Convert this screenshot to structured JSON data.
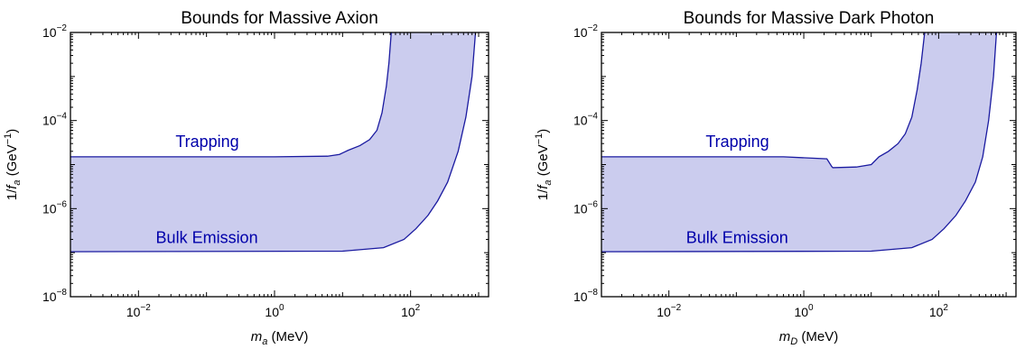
{
  "chart_data": [
    {
      "type": "area",
      "title": "Bounds for Massive Axion",
      "xlabel": {
        "var": "m",
        "sub": "a",
        "unit": " (MeV)"
      },
      "ylabel": {
        "pre": "1/",
        "var": "f",
        "sub": "a",
        "unit": " (GeV",
        "sup": "−1",
        "close": ")"
      },
      "x_scale": "log",
      "y_scale": "log",
      "xlim": [
        0.001,
        1400
      ],
      "ylim": [
        1e-08,
        0.01
      ],
      "x_ticks": [
        {
          "value": 0.01,
          "base": "10",
          "exp": "−2"
        },
        {
          "value": 1,
          "base": "10",
          "exp": "0"
        },
        {
          "value": 100,
          "base": "10",
          "exp": "2"
        }
      ],
      "y_ticks": [
        {
          "value": 1e-08,
          "base": "10",
          "exp": "−8"
        },
        {
          "value": 1e-06,
          "base": "10",
          "exp": "−6"
        },
        {
          "value": 0.0001,
          "base": "10",
          "exp": "−4"
        },
        {
          "value": 0.01,
          "base": "10",
          "exp": "−2"
        }
      ],
      "fill_color": "#CBCCEE",
      "line_color": "#1A1AA0",
      "upper_boundary": {
        "label": "Trapping",
        "points": [
          [
            0.001,
            1.5e-05
          ],
          [
            1,
            1.5e-05
          ],
          [
            6,
            1.55e-05
          ],
          [
            9,
            1.7e-05
          ],
          [
            12,
            2.1e-05
          ],
          [
            18,
            2.7e-05
          ],
          [
            25,
            3.7e-05
          ],
          [
            32,
            6e-05
          ],
          [
            38,
            0.00015
          ],
          [
            44,
            0.0006
          ],
          [
            48,
            0.002
          ],
          [
            52,
            0.01
          ]
        ]
      },
      "lower_boundary": {
        "label": "Bulk Emission",
        "points": [
          [
            0.001,
            1.05e-07
          ],
          [
            10,
            1.08e-07
          ],
          [
            40,
            1.3e-07
          ],
          [
            80,
            2e-07
          ],
          [
            120,
            3.5e-07
          ],
          [
            180,
            7e-07
          ],
          [
            250,
            1.5e-06
          ],
          [
            350,
            4e-06
          ],
          [
            500,
            2e-05
          ],
          [
            650,
            0.00012
          ],
          [
            800,
            0.001
          ],
          [
            900,
            0.01
          ]
        ]
      },
      "annotations": [
        {
          "text": "Trapping",
          "x": 0.035,
          "y": 2.5e-05
        },
        {
          "text": "Bulk Emission",
          "x": 0.018,
          "y": 1.65e-07
        }
      ]
    },
    {
      "type": "area",
      "title": "Bounds for Massive Dark Photon",
      "xlabel": {
        "var": "m",
        "sub": "D",
        "unit": " (MeV)"
      },
      "ylabel": {
        "pre": "1/",
        "var": "f",
        "sub": "a",
        "unit": " (GeV",
        "sup": "−1",
        "close": ")"
      },
      "x_scale": "log",
      "y_scale": "log",
      "xlim": [
        0.001,
        1400
      ],
      "ylim": [
        1e-08,
        0.01
      ],
      "x_ticks": [
        {
          "value": 0.01,
          "base": "10",
          "exp": "−2"
        },
        {
          "value": 1,
          "base": "10",
          "exp": "0"
        },
        {
          "value": 100,
          "base": "10",
          "exp": "2"
        }
      ],
      "y_ticks": [
        {
          "value": 1e-08,
          "base": "10",
          "exp": "−8"
        },
        {
          "value": 1e-06,
          "base": "10",
          "exp": "−6"
        },
        {
          "value": 0.0001,
          "base": "10",
          "exp": "−4"
        },
        {
          "value": 0.01,
          "base": "10",
          "exp": "−2"
        }
      ],
      "fill_color": "#CBCCEE",
      "line_color": "#1A1AA0",
      "upper_boundary": {
        "label": "Trapping",
        "points": [
          [
            0.001,
            1.5e-05
          ],
          [
            0.5,
            1.5e-05
          ],
          [
            2.2,
            1.35e-05
          ],
          [
            2.6,
            9e-06
          ],
          [
            2.7,
            8.5e-06
          ],
          [
            6,
            8.8e-06
          ],
          [
            10,
            1e-05
          ],
          [
            13,
            1.5e-05
          ],
          [
            18,
            2e-05
          ],
          [
            25,
            3e-05
          ],
          [
            32,
            5e-05
          ],
          [
            40,
            0.00012
          ],
          [
            48,
            0.0005
          ],
          [
            55,
            0.002
          ],
          [
            62,
            0.01
          ]
        ]
      },
      "lower_boundary": {
        "label": "Bulk Emission",
        "points": [
          [
            0.001,
            1.05e-07
          ],
          [
            10,
            1.08e-07
          ],
          [
            40,
            1.3e-07
          ],
          [
            80,
            2e-07
          ],
          [
            120,
            3.5e-07
          ],
          [
            180,
            7e-07
          ],
          [
            250,
            1.5e-06
          ],
          [
            350,
            4e-06
          ],
          [
            450,
            1.5e-05
          ],
          [
            550,
            0.0001
          ],
          [
            650,
            0.001
          ],
          [
            720,
            0.01
          ]
        ]
      },
      "annotations": [
        {
          "text": "Trapping",
          "x": 0.035,
          "y": 2.5e-05
        },
        {
          "text": "Bulk Emission",
          "x": 0.018,
          "y": 1.65e-07
        }
      ]
    }
  ]
}
